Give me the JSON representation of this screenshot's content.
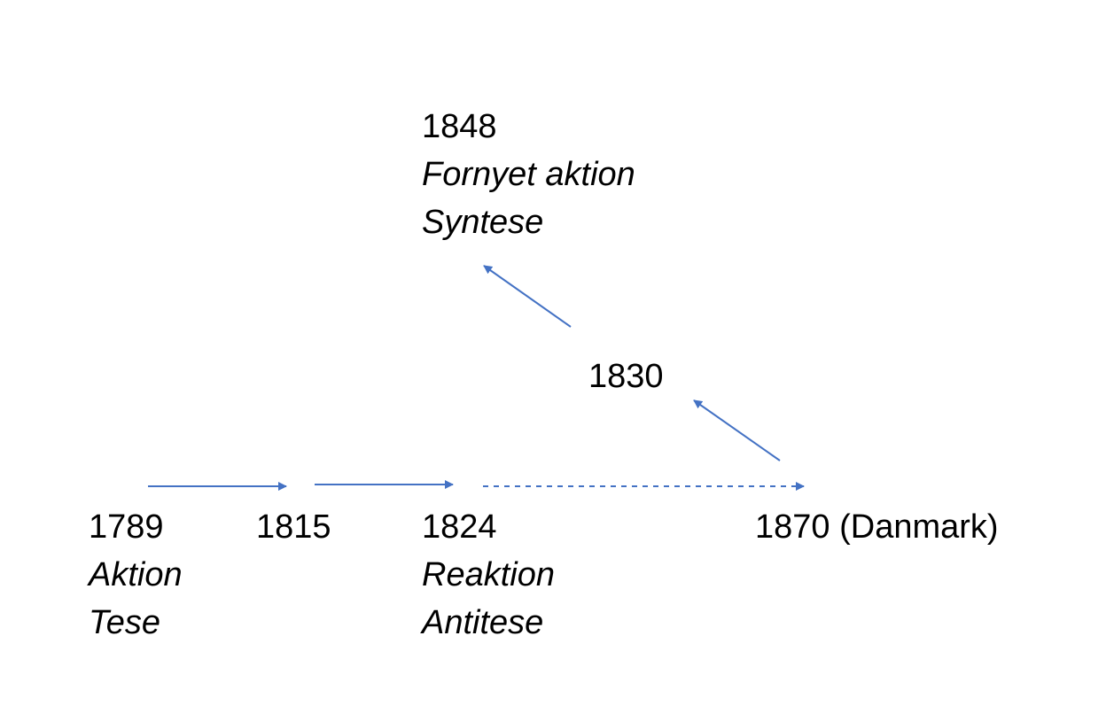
{
  "diagram": {
    "line_color": "#4472C4",
    "nodes": [
      {
        "id": "1789",
        "year": "1789",
        "labels": [
          "Aktion",
          "Tese"
        ]
      },
      {
        "id": "1815",
        "year": "1815",
        "labels": []
      },
      {
        "id": "1824",
        "year": "1824",
        "labels": [
          "Reaktion",
          "Antitese"
        ]
      },
      {
        "id": "1870",
        "year": "1870 (Danmark)",
        "labels": []
      },
      {
        "id": "1830",
        "year": "1830",
        "labels": []
      },
      {
        "id": "1848",
        "year": "1848",
        "labels": [
          "Fornyet aktion",
          "Syntese"
        ]
      }
    ],
    "edges": [
      {
        "from": "1789",
        "to": "1815",
        "style": "solid"
      },
      {
        "from": "1815",
        "to": "1824",
        "style": "solid"
      },
      {
        "from": "1824",
        "to": "1870",
        "style": "dashed"
      },
      {
        "from": "1870",
        "to": "1830",
        "style": "solid"
      },
      {
        "from": "1830",
        "to": "1848",
        "style": "solid"
      }
    ]
  }
}
